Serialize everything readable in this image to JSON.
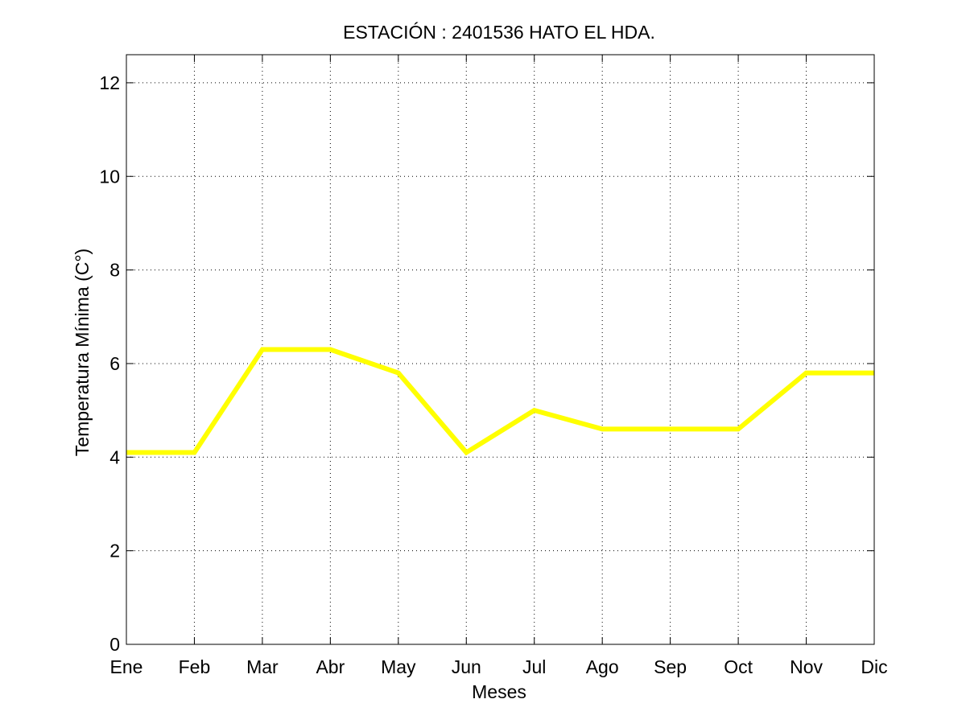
{
  "chart_data": {
    "type": "line",
    "title": "ESTACIÓN :  2401536  HATO EL HDA.",
    "xlabel": "Meses",
    "ylabel": "Temperatura Mínima (C°)",
    "categories": [
      "Ene",
      "Feb",
      "Mar",
      "Abr",
      "May",
      "Jun",
      "Jul",
      "Ago",
      "Sep",
      "Oct",
      "Nov",
      "Dic"
    ],
    "series": [
      {
        "values": [
          4.1,
          4.1,
          6.3,
          6.3,
          5.8,
          4.1,
          5.0,
          4.6,
          4.6,
          4.6,
          5.8,
          5.8
        ],
        "color": "#ffff00"
      }
    ],
    "ylim": [
      0,
      12.6
    ],
    "yticks": [
      0,
      2,
      4,
      6,
      8,
      10,
      12
    ],
    "grid": true,
    "grid_style": "dotted",
    "legend": "none"
  }
}
